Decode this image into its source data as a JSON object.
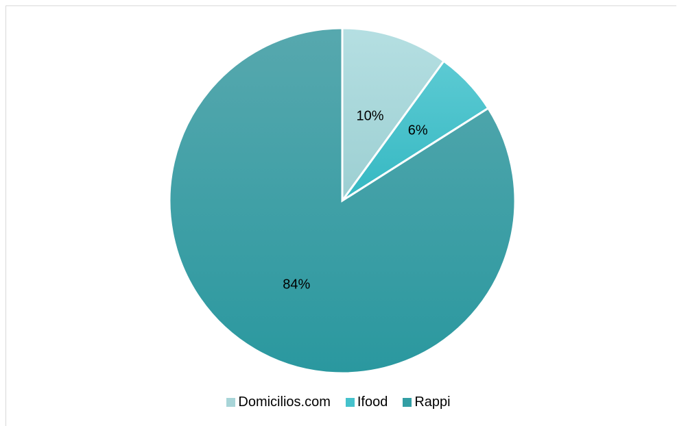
{
  "chart_data": {
    "type": "pie",
    "title": "",
    "categories": [
      "Domicilios.com",
      "Ifood",
      "Rappi"
    ],
    "values": [
      10,
      6,
      84
    ],
    "labels": [
      "10%",
      "6%",
      "84%"
    ],
    "colors": [
      "#a8d5d8",
      "#45c2cc",
      "#329ea4"
    ],
    "legend_position": "bottom"
  }
}
